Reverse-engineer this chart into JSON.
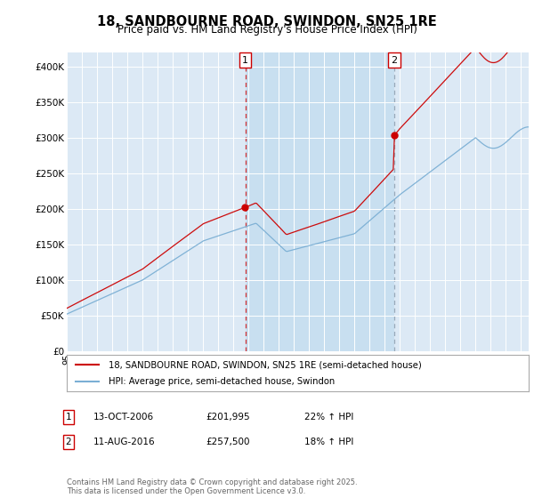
{
  "title": "18, SANDBOURNE ROAD, SWINDON, SN25 1RE",
  "subtitle": "Price paid vs. HM Land Registry's House Price Index (HPI)",
  "plot_bg_color": "#dce9f5",
  "highlight_bg_color": "#c8dff0",
  "ylim": [
    0,
    420000
  ],
  "yticks": [
    0,
    50000,
    100000,
    150000,
    200000,
    250000,
    300000,
    350000,
    400000
  ],
  "ytick_labels": [
    "£0",
    "£50K",
    "£100K",
    "£150K",
    "£200K",
    "£250K",
    "£300K",
    "£350K",
    "£400K"
  ],
  "sale1_date_num": 2006.79,
  "sale1_price": 201995,
  "sale2_date_num": 2016.62,
  "sale2_price": 257500,
  "sale1_date_str": "13-OCT-2006",
  "sale1_price_str": "£201,995",
  "sale1_hpi_str": "22% ↑ HPI",
  "sale2_date_str": "11-AUG-2016",
  "sale2_price_str": "£257,500",
  "sale2_hpi_str": "18% ↑ HPI",
  "red_line_color": "#cc0000",
  "blue_line_color": "#7bafd4",
  "dashed1_color": "#cc0000",
  "dashed2_color": "#8899aa",
  "legend_label_red": "18, SANDBOURNE ROAD, SWINDON, SN25 1RE (semi-detached house)",
  "legend_label_blue": "HPI: Average price, semi-detached house, Swindon",
  "footnote": "Contains HM Land Registry data © Crown copyright and database right 2025.\nThis data is licensed under the Open Government Licence v3.0.",
  "xlim_start": 1995,
  "xlim_end": 2025.5
}
